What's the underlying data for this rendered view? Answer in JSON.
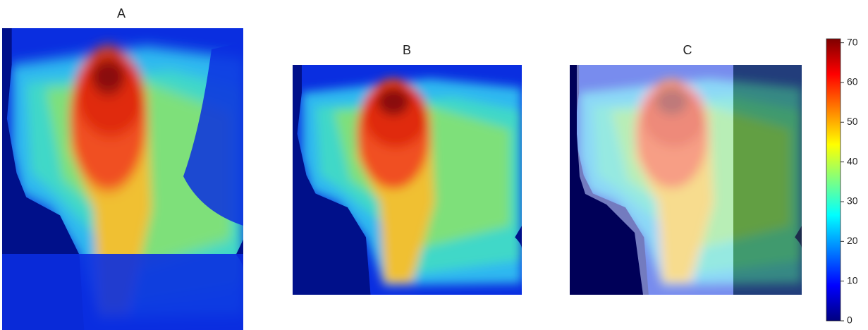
{
  "chart_data": {
    "type": "heatmap",
    "panels": [
      {
        "title": "A"
      },
      {
        "title": "B"
      },
      {
        "title": "C"
      }
    ],
    "colormap": "jet",
    "colorbar": {
      "clim": [
        0,
        71
      ],
      "ticks": [
        0,
        10,
        20,
        30,
        40,
        50,
        60,
        70
      ]
    }
  }
}
